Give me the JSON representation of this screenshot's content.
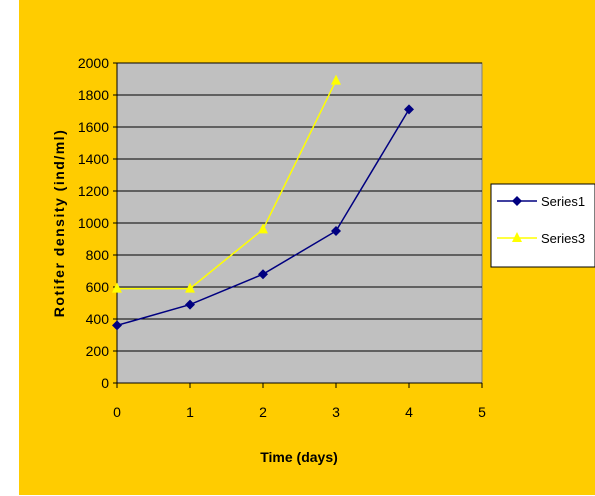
{
  "chart_data": {
    "type": "line",
    "title": "",
    "xlabel": "Time (days)",
    "ylabel": "Rotifer density (ind/ml)",
    "xlim": [
      0,
      5
    ],
    "ylim": [
      0,
      2000
    ],
    "x_ticks": [
      "0",
      "1",
      "2",
      "3",
      "4",
      "5"
    ],
    "y_ticks": [
      "0",
      "200",
      "400",
      "600",
      "800",
      "1000",
      "1200",
      "1400",
      "1600",
      "1800",
      "2000"
    ],
    "grid": "horizontal",
    "legend_position": "right",
    "background": "#ffcc00",
    "plot_background": "#c0c0c0",
    "series": [
      {
        "name": "Series1",
        "color": "#000080",
        "marker": "diamond",
        "x": [
          0,
          1,
          2,
          3,
          4
        ],
        "y": [
          360,
          490,
          680,
          950,
          1710
        ]
      },
      {
        "name": "Series3",
        "color": "#ffff00",
        "marker": "triangle",
        "x": [
          0,
          1,
          2,
          3
        ],
        "y": [
          590,
          590,
          960,
          1890
        ]
      }
    ]
  }
}
